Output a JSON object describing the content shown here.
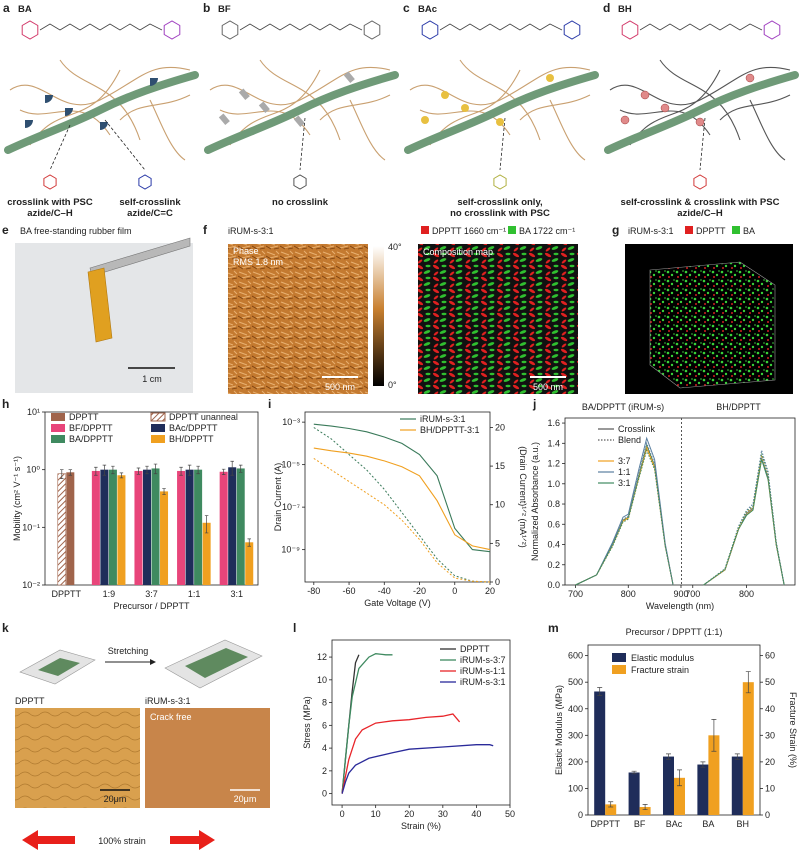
{
  "panels": {
    "a": {
      "letter": "a",
      "title": "BA",
      "captions": [
        [
          "crosslink with PSC",
          "azide/C–H"
        ],
        [
          "self-crosslink",
          "azide/C=C"
        ]
      ]
    },
    "b": {
      "letter": "b",
      "title": "BF",
      "captions": [
        [
          "no crosslink"
        ]
      ]
    },
    "c": {
      "letter": "c",
      "title": "BAc",
      "captions": [
        [
          "self-crosslink only,",
          "no crosslink with PSC"
        ]
      ]
    },
    "d": {
      "letter": "d",
      "title": "BH",
      "captions": [
        [
          "self-crosslink & crosslink with PSC",
          "azide/C–H"
        ]
      ]
    },
    "e": {
      "letter": "e",
      "title": "BA free-standing rubber film",
      "scale_bar": "1 cm"
    },
    "f": {
      "letter": "f",
      "sample": "iRUM-s-3:1",
      "phase_label": "Phase",
      "rms": "RMS 1.8 nm",
      "colorbar_max": "40°",
      "colorbar_min": "0°",
      "scale_bar": "500 nm",
      "legend": [
        "DPPTT 1660 cm⁻¹",
        "BA 1722 cm⁻¹"
      ],
      "map_label": "Composition map",
      "map_scale_bar": "500 nm"
    },
    "g": {
      "letter": "g",
      "sample": "iRUM-s-3:1",
      "legend": [
        "DPPTT",
        "BA"
      ]
    },
    "k": {
      "letter": "k",
      "arrow_label": "Stretching",
      "image_labels": [
        "DPPTT",
        "iRUM-s-3:1"
      ],
      "crack_label": "Crack free",
      "scale_bars": [
        "20μm",
        "20μm"
      ],
      "strain_label": "100% strain"
    }
  },
  "chart_data": [
    {
      "type": "bar",
      "letter": "h",
      "log": true,
      "ylim": [
        0.01,
        10
      ],
      "yticks": [
        {
          "value": 0.01,
          "label": "10⁻²"
        },
        {
          "value": 0.1,
          "label": "10⁻¹"
        },
        {
          "value": 1,
          "label": "10⁰"
        },
        {
          "value": 10,
          "label": "10¹"
        }
      ],
      "ylabel": "Mobility (cm² V⁻¹ s⁻¹)",
      "xlabel": "Precursor / DPPTT",
      "categories": [
        "DPPTT",
        "1:9",
        "3:7",
        "1:1",
        "3:1"
      ],
      "series": [
        {
          "name": "DPPTT unanneal",
          "color": "#a0644b",
          "hatch": true,
          "values": [
            0.85,
            null,
            null,
            null,
            null
          ],
          "errors": [
            0.15,
            null,
            null,
            null,
            null
          ]
        },
        {
          "name": "DPPTT",
          "color": "#a0644b",
          "values": [
            0.9,
            null,
            null,
            null,
            null
          ],
          "errors": [
            0.1,
            null,
            null,
            null,
            null
          ]
        },
        {
          "name": "BF/DPPTT",
          "color": "#e8457a",
          "values": [
            null,
            0.95,
            0.95,
            0.95,
            0.92
          ],
          "errors": [
            null,
            0.15,
            0.12,
            0.15,
            0.1
          ]
        },
        {
          "name": "BAc/DPPTT",
          "color": "#1f2d5a",
          "values": [
            null,
            1.0,
            1.0,
            1.0,
            1.1
          ],
          "errors": [
            null,
            0.2,
            0.15,
            0.2,
            0.3
          ]
        },
        {
          "name": "BA/DPPTT",
          "color": "#3f8a60",
          "values": [
            null,
            1.0,
            1.05,
            1.0,
            1.05
          ],
          "errors": [
            null,
            0.15,
            0.2,
            0.15,
            0.15
          ]
        },
        {
          "name": "BH/DPPTT",
          "color": "#f0a020",
          "values": [
            null,
            0.8,
            0.42,
            0.12,
            0.055
          ],
          "errors": [
            null,
            0.08,
            0.05,
            0.04,
            0.008
          ]
        }
      ]
    },
    {
      "type": "line",
      "letter": "i",
      "log": true,
      "xlim": [
        -85,
        20
      ],
      "xticks": [
        -80,
        -60,
        -40,
        -20,
        0,
        20
      ],
      "ylim": [
        3e-11,
        0.003
      ],
      "yticks": [
        {
          "value": 1e-09,
          "label": "10⁻⁹"
        },
        {
          "value": 1e-07,
          "label": "10⁻⁷"
        },
        {
          "value": 1e-05,
          "label": "10⁻⁵"
        },
        {
          "value": 0.001,
          "label": "10⁻³"
        }
      ],
      "y2lim": [
        0,
        22
      ],
      "y2ticks": [
        0,
        5,
        10,
        15,
        20
      ],
      "xlabel": "Gate Voltage (V)",
      "ylabel": "Drain Current (A)",
      "y2label": "(Drain Current)¹ᐟ² (mA¹ᐟ²)",
      "series": [
        {
          "name": "iRUM-s-3:1",
          "color": "#3a7a5a",
          "x": [
            -80,
            -70,
            -60,
            -50,
            -40,
            -30,
            -20,
            -10,
            0,
            10,
            20
          ],
          "values": [
            0.0008,
            0.00065,
            0.0005,
            0.00035,
            0.0002,
            0.0001,
            3e-05,
            3e-06,
            1e-08,
            1e-09,
            8e-10
          ],
          "y2_values": [
            20,
            18.5,
            16.5,
            14.5,
            12,
            9,
            6,
            3,
            0.8,
            0.1,
            0
          ]
        },
        {
          "name": "BH/DPPTT-3:1",
          "color": "#f0a020",
          "x": [
            -80,
            -70,
            -60,
            -50,
            -40,
            -30,
            -20,
            -10,
            0,
            10,
            20
          ],
          "values": [
            6e-05,
            4.5e-05,
            3.5e-05,
            2.5e-05,
            1.5e-05,
            8e-06,
            3e-06,
            2e-07,
            5e-09,
            1.5e-09,
            1e-09
          ],
          "y2_values": [
            16,
            14.5,
            13,
            11.5,
            10,
            8,
            5.5,
            2.5,
            0.5,
            0.1,
            0
          ]
        }
      ]
    },
    {
      "type": "line",
      "letter": "j",
      "ylim": [
        0,
        1.65
      ],
      "yticks": [
        {
          "value": 0,
          "label": "0.0"
        },
        {
          "value": 0.2,
          "label": "0.2"
        },
        {
          "value": 0.4,
          "label": "0.4"
        },
        {
          "value": 0.6,
          "label": "0.6"
        },
        {
          "value": 0.8,
          "label": "0.8"
        },
        {
          "value": 1,
          "label": "1.0"
        },
        {
          "value": 1.2,
          "label": "1.2"
        },
        {
          "value": 1.4,
          "label": "1.4"
        },
        {
          "value": 1.6,
          "label": "1.6"
        }
      ],
      "ylabel": "Normalized Absorbance (a.u.)",
      "xlabel": "Wavelength (nm)",
      "styles": [
        {
          "name": "Crosslink",
          "dash": "solid"
        },
        {
          "name": "Blend",
          "dash": "dotted"
        }
      ],
      "series": [
        {
          "name": "3:7",
          "color": "#f0a020"
        },
        {
          "name": "1:1",
          "color": "#5a7fa0"
        },
        {
          "name": "3:1",
          "color": "#3f8a60"
        }
      ],
      "panels": [
        {
          "title": "BA/DPPTT (iRUM-s)",
          "xlim": [
            680,
            900
          ],
          "xticks": [
            700,
            800,
            900
          ],
          "x": [
            700,
            740,
            770,
            790,
            800,
            820,
            835,
            850,
            870,
            885
          ],
          "crosslink": [
            [
              0,
              0.1,
              0.39,
              0.63,
              0.66,
              1.06,
              1.35,
              1.16,
              0.39,
              0
            ],
            [
              0,
              0.1,
              0.42,
              0.67,
              0.7,
              1.14,
              1.45,
              1.24,
              0.41,
              0
            ],
            [
              0,
              0.1,
              0.4,
              0.64,
              0.67,
              1.08,
              1.38,
              1.18,
              0.39,
              0
            ]
          ],
          "blend": [
            [
              0,
              0.1,
              0.39,
              0.64,
              0.67,
              1.08,
              1.37,
              1.17,
              0.39,
              0
            ],
            [
              0,
              0.1,
              0.4,
              0.65,
              0.68,
              1.1,
              1.4,
              1.2,
              0.4,
              0
            ],
            [
              0,
              0.1,
              0.38,
              0.62,
              0.65,
              1.05,
              1.33,
              1.14,
              0.38,
              0
            ]
          ]
        },
        {
          "title": "BH/DPPTT",
          "xlim": [
            680,
            890
          ],
          "xticks": [
            700,
            800
          ],
          "x": [
            720,
            760,
            785,
            800,
            812,
            828,
            840,
            855,
            870
          ],
          "crosslink": [
            [
              0,
              0.15,
              0.55,
              0.7,
              0.75,
              1.25,
              1.05,
              0.4,
              0
            ],
            [
              0,
              0.15,
              0.55,
              0.71,
              0.76,
              1.26,
              1.06,
              0.4,
              0
            ],
            [
              0,
              0.15,
              0.55,
              0.69,
              0.74,
              1.24,
              1.04,
              0.4,
              0
            ]
          ],
          "blend": [
            [
              0,
              0.15,
              0.56,
              0.72,
              0.77,
              1.28,
              1.08,
              0.41,
              0
            ],
            [
              0,
              0.16,
              0.58,
              0.74,
              0.8,
              1.33,
              1.12,
              0.43,
              0
            ],
            [
              0,
              0.16,
              0.57,
              0.73,
              0.78,
              1.3,
              1.09,
              0.42,
              0
            ]
          ]
        }
      ]
    },
    {
      "type": "line",
      "letter": "l",
      "xlim": [
        -3,
        50
      ],
      "xticks": [
        0,
        10,
        20,
        30,
        40,
        50
      ],
      "ylim": [
        -1,
        13.5
      ],
      "yticks": [
        0,
        2,
        4,
        6,
        8,
        10,
        12
      ],
      "xlabel": "Strain (%)",
      "ylabel": "Stress (MPa)",
      "series": [
        {
          "name": "DPPTT",
          "color": "#333333",
          "x": [
            0,
            1,
            2,
            3,
            4,
            5
          ],
          "values": [
            0,
            3,
            6,
            9,
            11.5,
            12.2
          ]
        },
        {
          "name": "iRUM-s-3:7",
          "color": "#3f8a60",
          "x": [
            0,
            1,
            2,
            3,
            5,
            8,
            10,
            13,
            15
          ],
          "values": [
            0,
            3,
            6,
            8.5,
            11,
            12,
            12.3,
            12.2,
            12.2
          ]
        },
        {
          "name": "iRUM-s-1:1",
          "color": "#e8252a",
          "x": [
            0,
            1,
            2,
            4,
            6,
            10,
            15,
            20,
            25,
            30,
            33,
            35
          ],
          "values": [
            0,
            1.5,
            3,
            4.8,
            5.6,
            6.2,
            6.4,
            6.5,
            6.7,
            6.8,
            7,
            6.3
          ]
        },
        {
          "name": "iRUM-s-3:1",
          "color": "#2a2a9a",
          "x": [
            0,
            1,
            2,
            4,
            8,
            15,
            20,
            30,
            40,
            44,
            45
          ],
          "values": [
            0,
            1,
            1.8,
            2.5,
            3.1,
            3.6,
            3.9,
            4.1,
            4.3,
            4.3,
            4.2
          ]
        }
      ]
    },
    {
      "type": "bar",
      "letter": "m",
      "title": "Precursor / DPPTT (1:1)",
      "categories": [
        "DPPTT",
        "BF",
        "BAc",
        "BA",
        "BH"
      ],
      "ylim": [
        0,
        640
      ],
      "yticks": [
        0,
        100,
        200,
        300,
        400,
        500,
        600
      ],
      "y2lim": [
        0,
        64
      ],
      "y2ticks": [
        0,
        10,
        20,
        30,
        40,
        50,
        60
      ],
      "ylabel": "Elastic Modulus (MPa)",
      "y2label": "Fracture Strain (%)",
      "series": [
        {
          "name": "Elastic modulus",
          "color": "#1f2d5a",
          "values": [
            465,
            160,
            220,
            190,
            220
          ],
          "errors": [
            15,
            5,
            10,
            10,
            10
          ]
        },
        {
          "name": "Fracture strain",
          "color": "#f0a020",
          "axis": "y2",
          "values": [
            4,
            3,
            14,
            30,
            50
          ],
          "errors": [
            1,
            1,
            3,
            6,
            4
          ]
        }
      ]
    }
  ]
}
